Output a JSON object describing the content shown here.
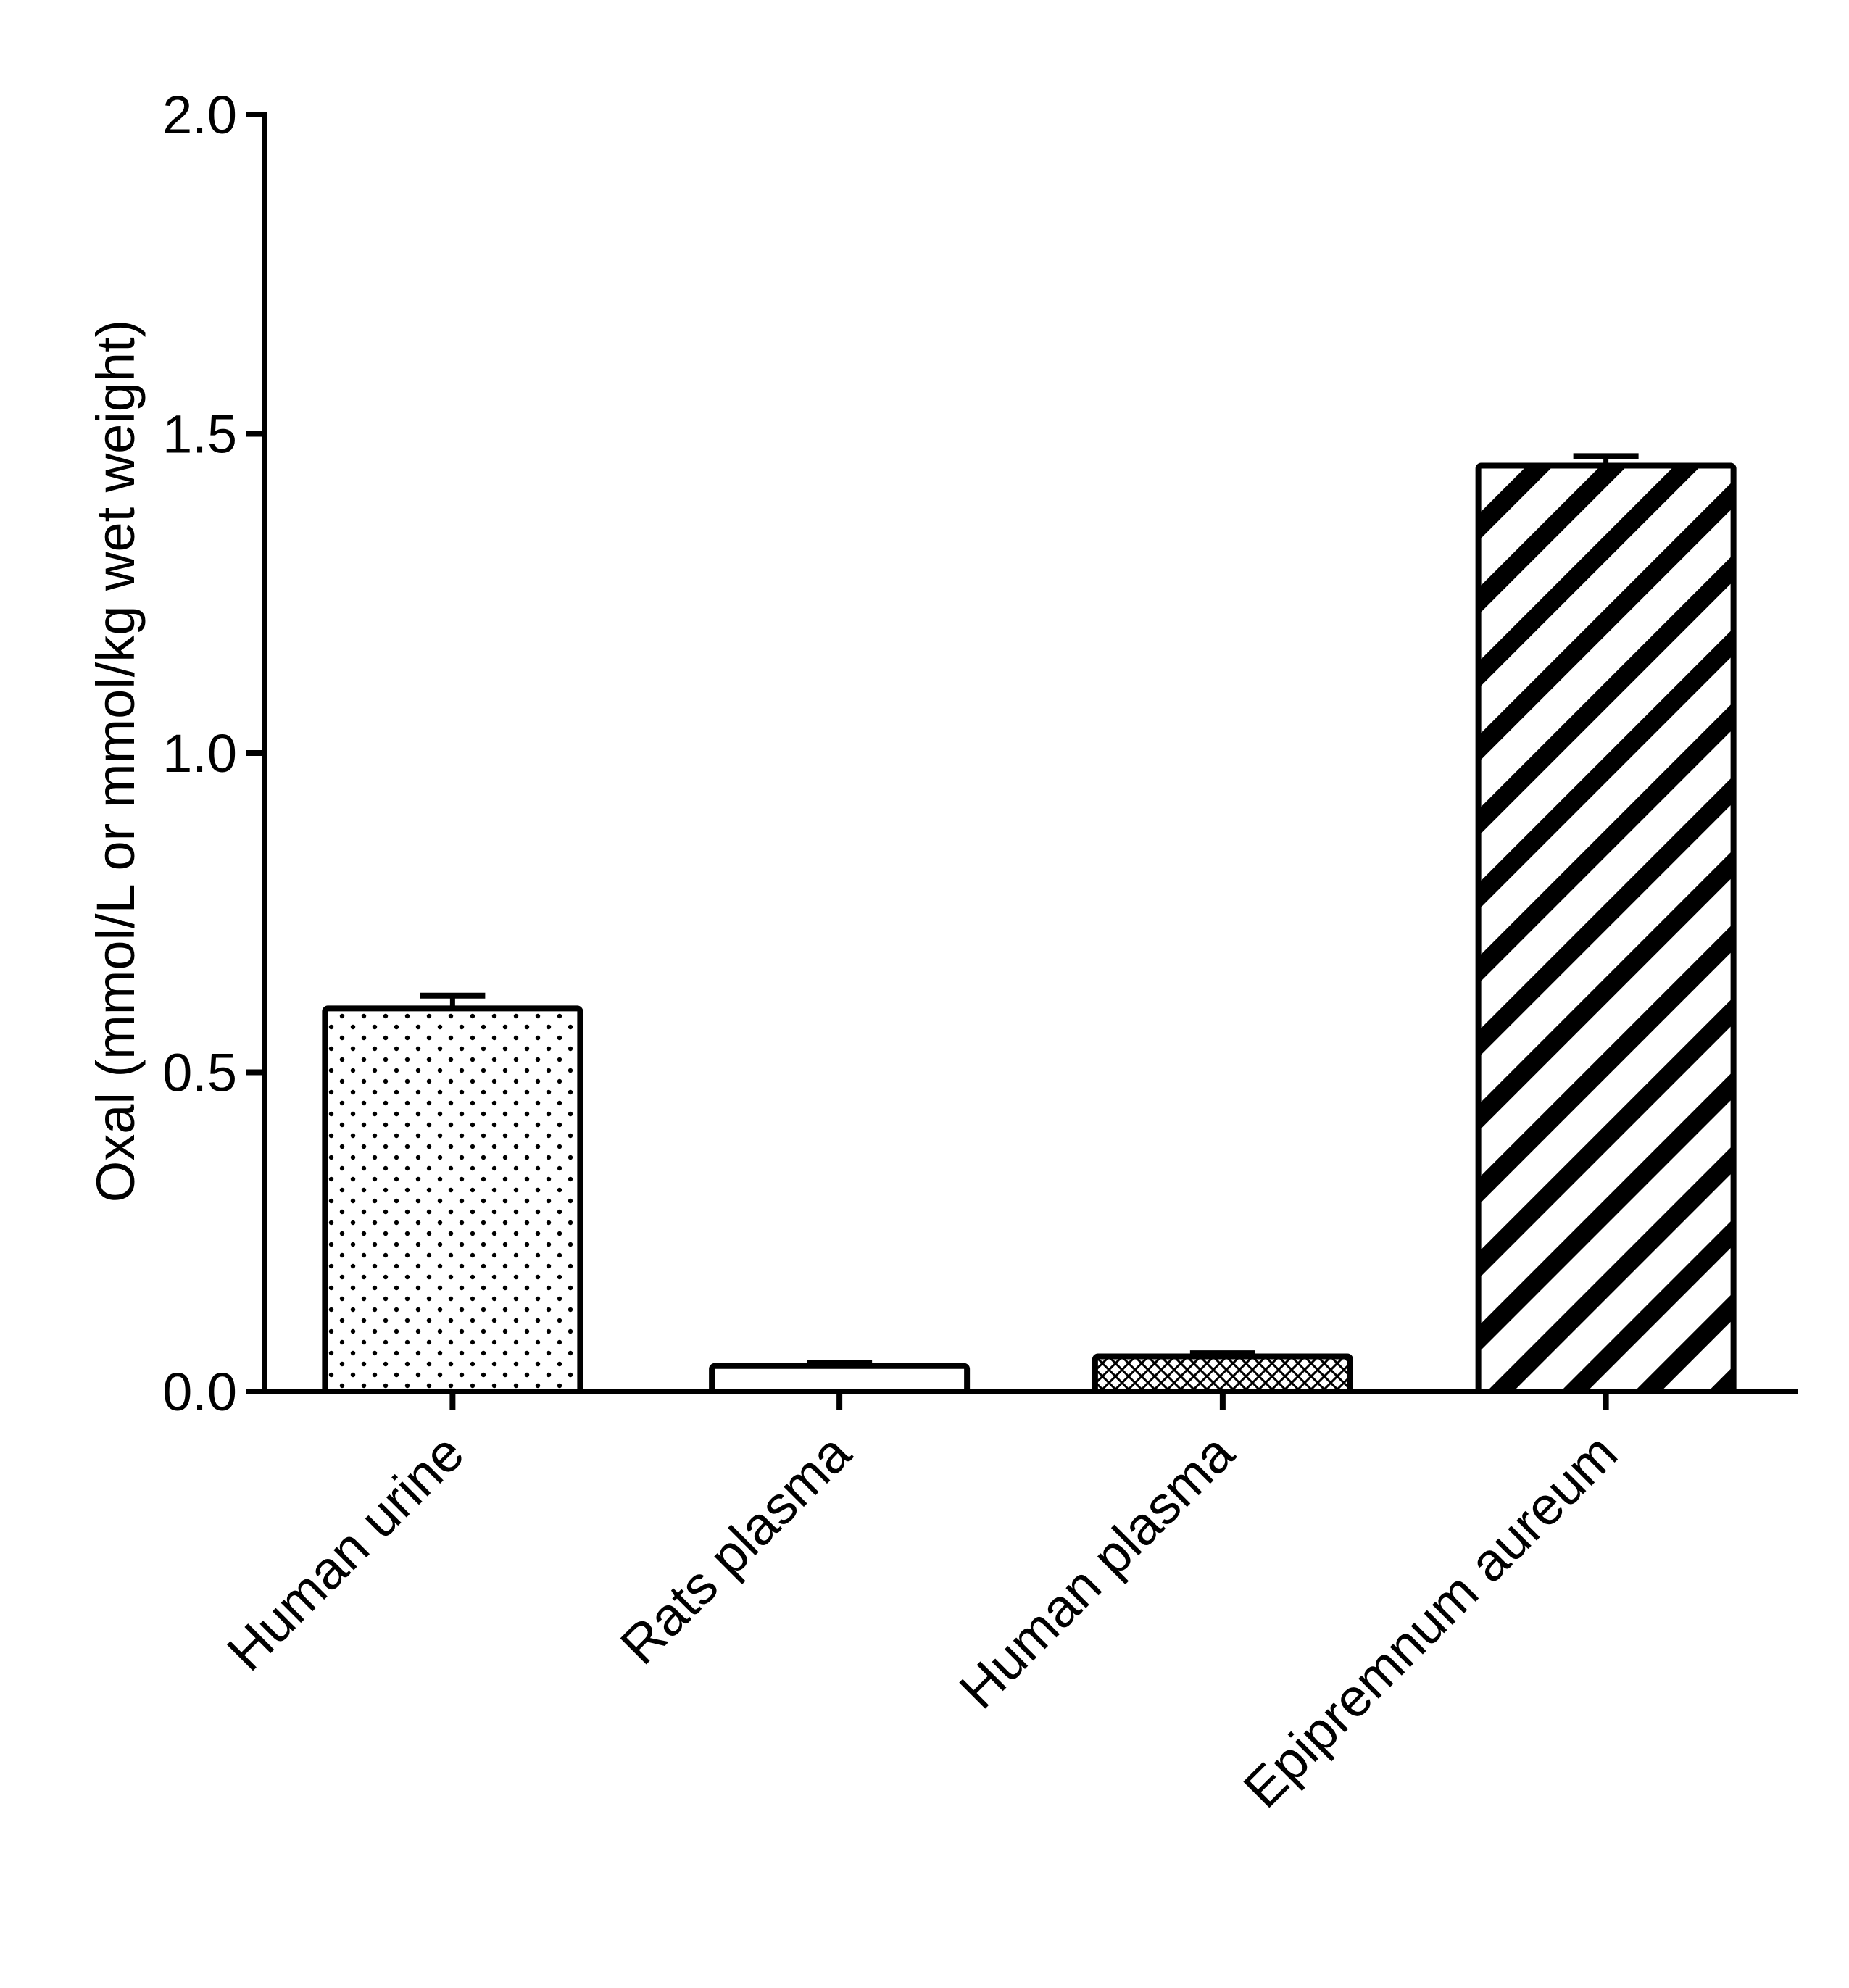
{
  "chart_data": {
    "type": "bar",
    "title": "",
    "xlabel": "",
    "ylabel": "Oxal (mmol/L or mmol/kg wet weight)",
    "ylim": [
      0,
      2.0
    ],
    "yticks": [
      "0.0",
      "0.5",
      "1.0",
      "1.5",
      "2.0"
    ],
    "ytick_values": [
      0,
      0.5,
      1.0,
      1.5,
      2.0
    ],
    "grid": false,
    "legend": "none",
    "categories": [
      "Human urine",
      "Rats plasma",
      "Human plasma",
      "Epipremnum aureum"
    ],
    "values": [
      0.6,
      0.04,
      0.055,
      1.45
    ],
    "errors": [
      0.02,
      0.005,
      0.005,
      0.015
    ],
    "patterns": [
      "dots",
      "none",
      "crosshatch",
      "diagonal-stripes"
    ],
    "colors": {
      "stroke": "#000000",
      "fill": "#ffffff"
    }
  }
}
